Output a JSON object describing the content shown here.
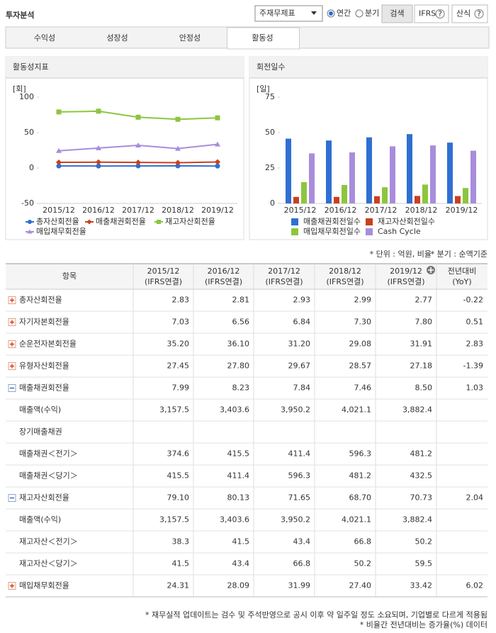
{
  "header": {
    "title": "투자분석",
    "select": "주재무제표",
    "radios": [
      {
        "label": "연간",
        "checked": true
      },
      {
        "label": "분기",
        "checked": false
      }
    ],
    "buttons": [
      {
        "label": "검색"
      },
      {
        "label": "IFRS",
        "help": "?"
      },
      {
        "label": "산식",
        "help": "?"
      }
    ]
  },
  "tabs": {
    "items": [
      "수익성",
      "성장성",
      "안정성",
      "활동성"
    ],
    "active": 3
  },
  "chart_data": [
    {
      "type": "line",
      "title": "활동성지표",
      "unit_label": "[회]",
      "categories": [
        "2015/12",
        "2016/12",
        "2017/12",
        "2018/12",
        "2019/12"
      ],
      "ylim": [
        -50,
        100
      ],
      "yticks": [
        -50,
        0,
        50,
        100
      ],
      "series": [
        {
          "name": "총자산회전율",
          "color": "#2f6fd2",
          "marker": "circle",
          "values": [
            2.83,
            2.81,
            2.93,
            2.99,
            2.77
          ]
        },
        {
          "name": "매출채권회전율",
          "color": "#c9401c",
          "marker": "diamond",
          "values": [
            7.99,
            8.23,
            7.84,
            7.46,
            8.5
          ]
        },
        {
          "name": "재고자산회전율",
          "color": "#8cc63e",
          "marker": "square",
          "values": [
            79.1,
            80.13,
            71.65,
            68.7,
            70.73
          ]
        },
        {
          "name": "매입채무회전율",
          "color": "#a88ddc",
          "marker": "triangle",
          "values": [
            24.31,
            28.09,
            31.99,
            27.4,
            33.42
          ]
        }
      ]
    },
    {
      "type": "bar",
      "title": "회전일수",
      "unit_label": "[일]",
      "categories": [
        "2015/12",
        "2016/12",
        "2017/12",
        "2018/12",
        "2019/12"
      ],
      "ylim": [
        0,
        75
      ],
      "yticks": [
        0,
        25,
        50,
        75
      ],
      "series": [
        {
          "name": "매출채권회전일수",
          "color": "#2f6fd2",
          "values": [
            45.7,
            44.4,
            46.6,
            48.9,
            42.9
          ]
        },
        {
          "name": "재고자산회전일수",
          "color": "#c9401c",
          "values": [
            4.6,
            4.6,
            5.1,
            5.3,
            5.2
          ]
        },
        {
          "name": "매입채무회전일수",
          "color": "#8cc63e",
          "values": [
            15.0,
            13.0,
            11.4,
            13.3,
            10.9
          ]
        },
        {
          "name": "Cash Cycle",
          "color": "#a88ddc",
          "values": [
            35.3,
            36.0,
            40.3,
            40.9,
            37.2
          ]
        }
      ]
    }
  ],
  "notes": [
    "* 단위 : 억원, 비율",
    "* 분기 : 순액기준"
  ],
  "table": {
    "columns": [
      [
        "항목"
      ],
      [
        "2015/12",
        "(IFRS연결)"
      ],
      [
        "2016/12",
        "(IFRS연결)"
      ],
      [
        "2017/12",
        "(IFRS연결)"
      ],
      [
        "2018/12",
        "(IFRS연결)"
      ],
      [
        "2019/12",
        "(IFRS연결)"
      ],
      [
        "전년대비",
        "(YoY)"
      ]
    ],
    "rows": [
      {
        "label": "총자산회전율",
        "toggle": "plus",
        "cells": [
          "2.83",
          "2.81",
          "2.93",
          "2.99",
          "2.77",
          "-0.22"
        ]
      },
      {
        "label": "자기자본회전율",
        "toggle": "plus",
        "cells": [
          "7.03",
          "6.56",
          "6.84",
          "7.30",
          "7.80",
          "0.51"
        ]
      },
      {
        "label": "순운전자본회전율",
        "toggle": "plus",
        "cells": [
          "35.20",
          "36.10",
          "31.20",
          "29.08",
          "31.91",
          "2.83"
        ]
      },
      {
        "label": "유형자산회전율",
        "toggle": "plus",
        "cells": [
          "27.45",
          "27.80",
          "29.67",
          "28.57",
          "27.18",
          "-1.39"
        ]
      },
      {
        "label": "매출채권회전율",
        "toggle": "minus",
        "cells": [
          "7.99",
          "8.23",
          "7.84",
          "7.46",
          "8.50",
          "1.03"
        ]
      },
      {
        "label": "매출액(수익)",
        "toggle": null,
        "cells": [
          "3,157.5",
          "3,403.6",
          "3,950.2",
          "4,021.1",
          "3,882.4",
          null
        ]
      },
      {
        "label": "장기매출채권",
        "toggle": null,
        "cells": [
          null,
          null,
          null,
          null,
          null,
          null
        ]
      },
      {
        "label": "매출채권＜전기＞",
        "toggle": null,
        "cells": [
          "374.6",
          "415.5",
          "411.4",
          "596.3",
          "481.2",
          null
        ]
      },
      {
        "label": "매출채권＜당기＞",
        "toggle": null,
        "cells": [
          "415.5",
          "411.4",
          "596.3",
          "481.2",
          "432.5",
          null
        ]
      },
      {
        "label": "재고자산회전율",
        "toggle": "minus",
        "cells": [
          "79.10",
          "80.13",
          "71.65",
          "68.70",
          "70.73",
          "2.04"
        ]
      },
      {
        "label": "매출액(수익)",
        "toggle": null,
        "cells": [
          "3,157.5",
          "3,403.6",
          "3,950.2",
          "4,021.1",
          "3,882.4",
          null
        ]
      },
      {
        "label": "재고자산＜전기＞",
        "toggle": null,
        "cells": [
          "38.3",
          "41.5",
          "43.4",
          "66.8",
          "50.2",
          null
        ]
      },
      {
        "label": "재고자산＜당기＞",
        "toggle": null,
        "cells": [
          "41.5",
          "43.4",
          "66.8",
          "50.2",
          "59.5",
          null
        ]
      },
      {
        "label": "매입채무회전율",
        "toggle": "plus",
        "cells": [
          "24.31",
          "28.09",
          "31.99",
          "27.40",
          "33.42",
          "6.02"
        ]
      }
    ]
  },
  "footnotes": [
    "* 재무실적 업데이트는 검수 및 주석반영으로 공시 이후 약 일주일 정도 소요되며, 기업별로 다르게 적용됨",
    "* 비율간 전년대비는 증가율(%) 데이터"
  ]
}
